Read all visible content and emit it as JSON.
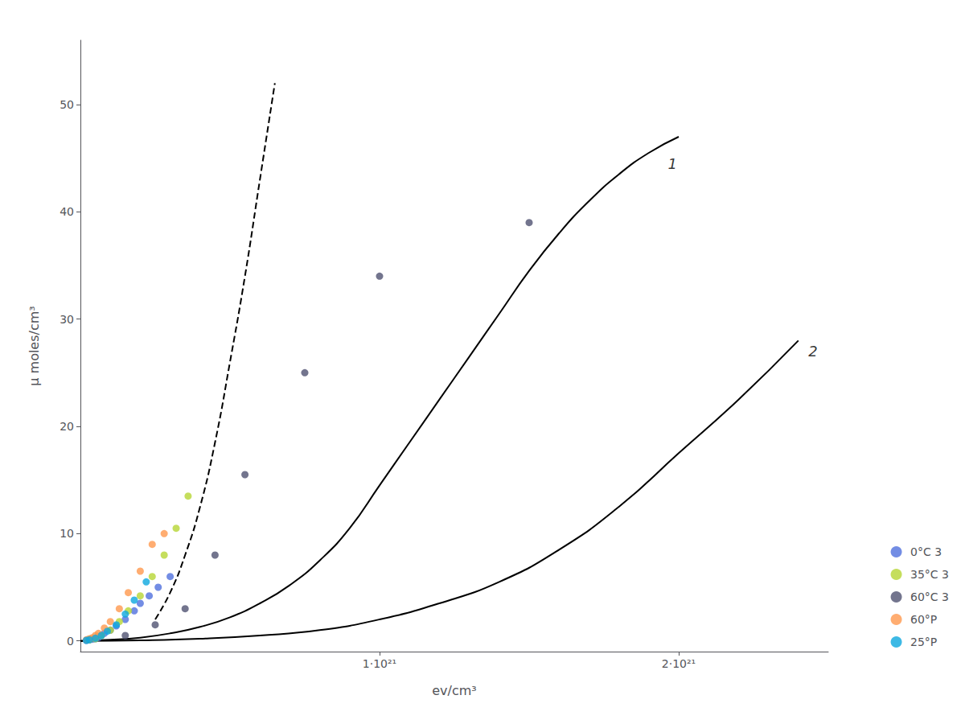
{
  "chart_data": {
    "type": "scatter",
    "xlabel": "ev/cm³",
    "ylabel": "μ moles/cm³",
    "xlim": [
      0,
      2.5e+21
    ],
    "ylim": [
      -1,
      56
    ],
    "xticks": [
      {
        "value": 1e+21,
        "label": "1·10²¹"
      },
      {
        "value": 2e+21,
        "label": "2·10²¹"
      }
    ],
    "yticks": [
      0,
      10,
      20,
      30,
      40,
      50
    ],
    "grid": false,
    "legend": "lower right",
    "annotations": [
      {
        "text": "1",
        "x": 1.95e+21,
        "y": 44.5
      },
      {
        "text": "2",
        "x": 2.42e+21,
        "y": 27.0
      }
    ],
    "series": [
      {
        "type": "line",
        "color": "#000000",
        "line_style": "solid",
        "x": [
          0,
          1e+20,
          2e+20,
          3e+20,
          4e+20,
          5e+20,
          6e+20,
          7e+20,
          8e+20,
          9e+20,
          1e+21,
          1.1e+21,
          1.2e+21,
          1.3e+21,
          1.4e+21,
          1.5e+21,
          1.6e+21,
          1.7e+21,
          1.8e+21,
          1.9e+21,
          2e+21
        ],
        "values": [
          0,
          0.1,
          0.3,
          0.7,
          1.3,
          2.2,
          3.5,
          5.2,
          7.5,
          10.5,
          14.5,
          18.5,
          22.5,
          26.5,
          30.5,
          34.5,
          38.0,
          41.0,
          43.5,
          45.5,
          47.0
        ]
      },
      {
        "type": "line",
        "color": "#000000",
        "line_style": "solid",
        "x": [
          0,
          2e+20,
          4e+20,
          6e+20,
          8e+20,
          1e+21,
          1.2e+21,
          1.4e+21,
          1.6e+21,
          1.8e+21,
          2e+21,
          2.2e+21,
          2.4e+21
        ],
        "values": [
          0,
          0.05,
          0.2,
          0.5,
          1.0,
          2.0,
          3.5,
          5.5,
          8.5,
          12.5,
          17.5,
          22.5,
          28.0
        ]
      },
      {
        "type": "line",
        "color": "#000000",
        "line_style": "dashed",
        "x": [
          2.5e+20,
          3e+20,
          3.5e+20,
          4e+20,
          4.5e+20,
          5e+20,
          5.5e+20,
          6e+20,
          6.5e+20
        ],
        "values": [
          2.0,
          4.5,
          8.0,
          12.5,
          18.5,
          26.0,
          34.0,
          43.0,
          52.0
        ]
      },
      {
        "type": "scatter",
        "name": "0°C 3",
        "marker": "circle",
        "x": [
          2e+19,
          3e+19,
          4e+19,
          5e+19,
          6e+19,
          7e+19,
          8e+19,
          1e+20,
          1.2e+20,
          1.5e+20,
          1.8e+20,
          2e+20,
          2.3e+20,
          2.6e+20,
          3e+20
        ],
        "values": [
          0.05,
          0.1,
          0.15,
          0.2,
          0.3,
          0.5,
          0.7,
          1.0,
          1.4,
          2.0,
          2.8,
          3.5,
          4.2,
          5.0,
          6.0
        ]
      },
      {
        "type": "scatter",
        "name": "35°C 3",
        "marker": "circle",
        "x": [
          3e+19,
          5e+19,
          7e+19,
          1e+20,
          1.3e+20,
          1.6e+20,
          2e+20,
          2.4e+20,
          2.8e+20,
          3.2e+20,
          3.6e+20
        ],
        "values": [
          0.1,
          0.2,
          0.5,
          1.0,
          1.8,
          2.8,
          4.2,
          6.0,
          8.0,
          10.5,
          13.5
        ]
      },
      {
        "type": "scatter",
        "name": "60°C 3",
        "marker": "circle",
        "x": [
          1.5e+20,
          2.5e+20,
          3.5e+20,
          4.5e+20,
          5.5e+20,
          7.5e+20,
          1e+21,
          1.5e+21
        ],
        "values": [
          0.5,
          1.5,
          3.0,
          8.0,
          15.5,
          25.0,
          34.0,
          39.0
        ]
      },
      {
        "type": "scatter",
        "name": "60°P",
        "marker": "circle",
        "x": [
          2e+19,
          3e+19,
          4e+19,
          5e+19,
          6e+19,
          8e+19,
          1e+20,
          1.3e+20,
          1.6e+20,
          2e+20,
          2.4e+20,
          2.8e+20
        ],
        "values": [
          0.1,
          0.2,
          0.3,
          0.5,
          0.7,
          1.2,
          1.8,
          3.0,
          4.5,
          6.5,
          9.0,
          10.0
        ]
      },
      {
        "type": "scatter",
        "name": "25°P",
        "marker": "circle",
        "x": [
          2e+19,
          3e+19,
          5e+19,
          7e+19,
          9e+19,
          1.2e+20,
          1.5e+20,
          1.8e+20,
          2.2e+20
        ],
        "values": [
          0.05,
          0.1,
          0.25,
          0.5,
          0.9,
          1.5,
          2.5,
          3.8,
          5.5
        ]
      }
    ]
  }
}
